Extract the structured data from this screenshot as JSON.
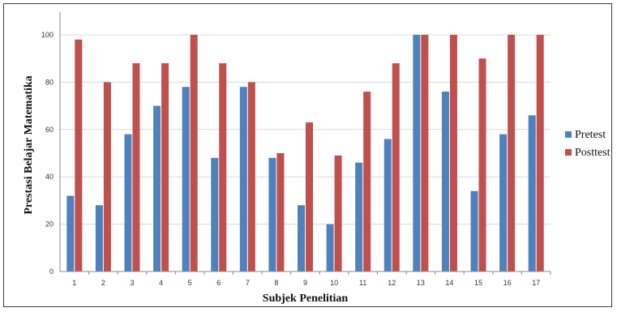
{
  "chart_data": {
    "type": "bar",
    "categories": [
      "1",
      "2",
      "3",
      "4",
      "5",
      "6",
      "7",
      "8",
      "9",
      "10",
      "11",
      "12",
      "13",
      "14",
      "15",
      "16",
      "17"
    ],
    "series": [
      {
        "name": "Pretest",
        "color": "#4F81BD",
        "values": [
          32,
          28,
          58,
          70,
          78,
          48,
          78,
          48,
          28,
          20,
          46,
          56,
          100,
          76,
          34,
          58,
          66
        ]
      },
      {
        "name": "Posttest",
        "color": "#C0504D",
        "values": [
          98,
          80,
          88,
          88,
          100,
          88,
          80,
          50,
          63,
          49,
          76,
          88,
          100,
          100,
          90,
          100,
          100
        ]
      }
    ],
    "title": "",
    "xlabel": "Subjek Penelitian",
    "ylabel": "Prestasi Belajar Matematika",
    "ylim": [
      0,
      100
    ],
    "yticks": [
      0,
      20,
      40,
      60,
      80,
      100
    ],
    "grid": true,
    "legend": "right"
  }
}
